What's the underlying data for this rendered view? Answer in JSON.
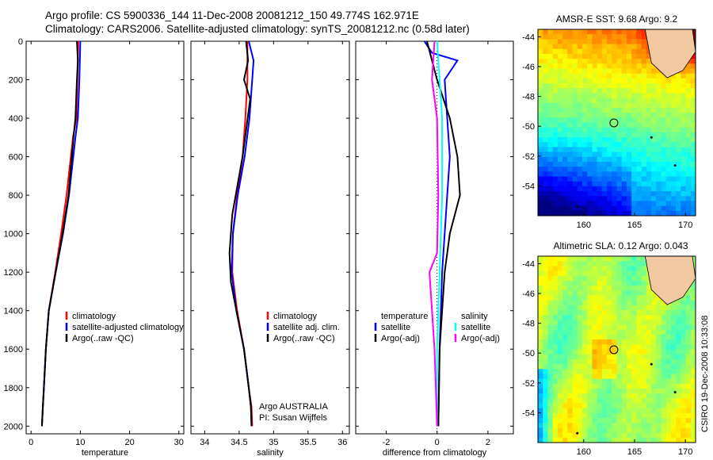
{
  "header": {
    "line1": "Argo profile: CS 5900336_144 11-Dec-2008 20081212_150 49.774S 162.971E",
    "line2": "Climatology: CARS2006. Satellite-adjusted climatology: synTS_20081212.nc (0.58d later)"
  },
  "credit": "CSIRO 19-Dec-2008 10:33:08",
  "colors": {
    "red": "#ff0000",
    "blue": "#0000ff",
    "black": "#000000",
    "cyan": "#00ffff",
    "magenta": "#ff00ff"
  },
  "chart_data": [
    {
      "type": "line",
      "xlabel": "temperature",
      "ylabel": "",
      "xlim": [
        -1,
        31
      ],
      "ylim": [
        2040,
        0
      ],
      "xticks": [
        "0",
        "10",
        "20",
        "30"
      ],
      "yticks": [
        "0",
        "200",
        "400",
        "600",
        "800",
        "1000",
        "1200",
        "1400",
        "1600",
        "1800",
        "2000"
      ],
      "legend": {
        "placement": "lower-center",
        "entries": [
          "climatology",
          "satellite-adjusted climatology",
          "Argo(..raw -QC)"
        ]
      },
      "series": [
        {
          "name": "climatology",
          "color": "red",
          "x": [
            9.6,
            9.4,
            9.2,
            8.5,
            7.2,
            6.1,
            4.9,
            3.6,
            3.0,
            2.6,
            2.4,
            2.2
          ],
          "depth": [
            0,
            200,
            400,
            500,
            800,
            1000,
            1200,
            1400,
            1600,
            1800,
            1900,
            2000
          ]
        },
        {
          "name": "satellite-adjusted climatology",
          "color": "blue",
          "x": [
            10.0,
            9.8,
            9.5,
            9.0,
            7.7,
            6.5,
            5.0,
            3.6,
            3.0,
            2.6,
            2.4,
            2.2
          ],
          "depth": [
            0,
            200,
            400,
            500,
            800,
            1000,
            1200,
            1400,
            1600,
            1800,
            1900,
            2000
          ]
        },
        {
          "name": "Argo(..raw -QC)",
          "color": "black",
          "x": [
            9.3,
            9.5,
            9.3,
            9.0,
            8.6,
            7.6,
            6.4,
            5.0,
            3.6,
            3.0,
            2.6,
            2.4,
            2.2
          ],
          "depth": [
            0,
            100,
            200,
            400,
            500,
            800,
            1000,
            1200,
            1400,
            1600,
            1800,
            1900,
            2000
          ]
        }
      ]
    },
    {
      "type": "line",
      "xlabel": "salinity",
      "ylabel": "",
      "xlim": [
        33.8,
        36.1
      ],
      "ylim": [
        2040,
        0
      ],
      "xticks": [
        "34",
        "34.5",
        "35",
        "35.5",
        "36"
      ],
      "yticks": [],
      "legend": {
        "placement": "center",
        "entries": [
          "climatology",
          "satellite adj. clim.",
          "Argo(..raw -QC)"
        ]
      },
      "annotation": [
        "Argo AUSTRALIA",
        "PI: Susan Wijffels"
      ],
      "series": [
        {
          "name": "climatology",
          "color": "red",
          "x": [
            34.62,
            34.62,
            34.59,
            34.55,
            34.47,
            34.41,
            34.4,
            34.47,
            34.57,
            34.64,
            34.68,
            34.69
          ],
          "depth": [
            0,
            200,
            400,
            600,
            800,
            1000,
            1200,
            1400,
            1600,
            1800,
            1900,
            2000
          ]
        },
        {
          "name": "satellite adj. clim.",
          "color": "blue",
          "x": [
            34.64,
            34.71,
            34.65,
            34.58,
            34.48,
            34.41,
            34.39,
            34.46,
            34.57,
            34.64,
            34.67,
            34.68
          ],
          "depth": [
            0,
            100,
            400,
            600,
            800,
            1000,
            1200,
            1400,
            1600,
            1800,
            1900,
            2000
          ]
        },
        {
          "name": "Argo(..raw -QC)",
          "color": "black",
          "x": [
            34.6,
            34.63,
            34.57,
            34.66,
            34.55,
            34.4,
            34.36,
            34.38,
            34.46,
            34.57,
            34.64,
            34.67,
            34.68
          ],
          "depth": [
            0,
            100,
            200,
            300,
            600,
            900,
            1100,
            1250,
            1400,
            1600,
            1800,
            1900,
            2000
          ]
        }
      ]
    },
    {
      "type": "line",
      "xlabel": "difference from climatology",
      "ylabel": "",
      "xlim": [
        -3.2,
        3.0
      ],
      "ylim": [
        2040,
        0
      ],
      "xticks": [
        "-2",
        "0",
        "2"
      ],
      "yticks": [],
      "legend": {
        "placement": "lower-center",
        "entries": [
          "satellite",
          "Argo(-adj)",
          "satellite",
          "Argo(-adj)"
        ]
      },
      "legend_headers": [
        "temperature",
        "salinity"
      ],
      "series": [
        {
          "name": "satellite",
          "group": "temperature",
          "color": "blue",
          "x": [
            -0.5,
            -0.2,
            0.8,
            0.3,
            0.4,
            0.5,
            0.4,
            0.3,
            0.2,
            0.15,
            0.1,
            0.05
          ],
          "depth": [
            0,
            60,
            100,
            200,
            400,
            600,
            800,
            1000,
            1200,
            1400,
            1600,
            2000
          ]
        },
        {
          "name": "Argo(-adj)",
          "group": "temperature",
          "color": "black",
          "x": [
            -0.4,
            -0.2,
            0.0,
            0.5,
            0.8,
            0.9,
            0.7,
            0.5,
            0.3,
            0.2,
            0.1,
            0.05
          ],
          "depth": [
            0,
            100,
            200,
            400,
            600,
            800,
            900,
            1000,
            1200,
            1400,
            1600,
            2000
          ]
        },
        {
          "name": "satellite",
          "group": "salinity",
          "color": "cyan",
          "x": [
            0.0,
            0.1,
            0.2,
            0.2,
            0.1,
            0.05,
            0.0,
            0.0
          ],
          "depth": [
            0,
            200,
            400,
            800,
            1200,
            1400,
            1600,
            2000
          ]
        },
        {
          "name": "Argo(-adj)",
          "group": "salinity",
          "color": "magenta",
          "x": [
            -0.1,
            -0.2,
            0.0,
            0.05,
            0.0,
            -0.3,
            -0.1,
            0.0
          ],
          "depth": [
            0,
            200,
            400,
            800,
            1100,
            1200,
            1600,
            2000
          ]
        }
      ]
    },
    {
      "type": "heatmap",
      "title": "AMSR-E SST: 9.68 Argo: 9.2",
      "xticks": [
        "160",
        "165",
        "170"
      ],
      "yticks": [
        "-44",
        "-46",
        "-48",
        "-50",
        "-52",
        "-54"
      ],
      "xlim": [
        155.5,
        171
      ],
      "ylim": [
        -56,
        -43.5
      ],
      "marker": {
        "lon": 162.971,
        "lat": -49.774
      }
    },
    {
      "type": "heatmap",
      "title": "Altimetric SLA: 0.12 Argo: 0.043",
      "xticks": [
        "160",
        "165",
        "170"
      ],
      "yticks": [
        "-44",
        "-46",
        "-48",
        "-50",
        "-52",
        "-54"
      ],
      "xlim": [
        155.5,
        171
      ],
      "ylim": [
        -56,
        -43.5
      ],
      "marker": {
        "lon": 162.971,
        "lat": -49.774
      }
    }
  ]
}
